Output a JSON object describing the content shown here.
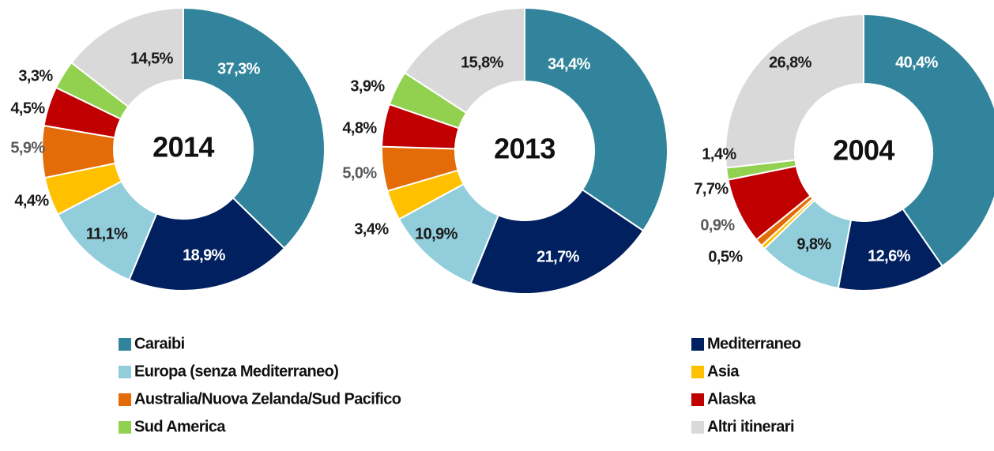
{
  "chart_data": [
    {
      "type": "pie",
      "title": "2014",
      "categories": [
        "Caraibi",
        "Mediterraneo",
        "Europa (senza Mediterraneo)",
        "Asia",
        "Australia/Nuova Zelanda/Sud Pacifico",
        "Alaska",
        "Sud America",
        "Altri itinerari"
      ],
      "values": [
        37.3,
        18.9,
        11.1,
        4.4,
        5.9,
        4.5,
        3.3,
        14.5
      ],
      "value_labels": [
        "37,3%",
        "18,9%",
        "11,1%",
        "4,4%",
        "5,9%",
        "4,5%",
        "3,3%",
        "14,5%"
      ],
      "colors": [
        "#31849b",
        "#002060",
        "#92cddc",
        "#ffc000",
        "#e36c09",
        "#c00000",
        "#92d050",
        "#d9d9d9"
      ]
    },
    {
      "type": "pie",
      "title": "2013",
      "categories": [
        "Caraibi",
        "Mediterraneo",
        "Europa (senza Mediterraneo)",
        "Asia",
        "Australia/Nuova Zelanda/Sud Pacifico",
        "Alaska",
        "Sud America",
        "Altri itinerari"
      ],
      "values": [
        34.4,
        21.7,
        10.9,
        3.4,
        5.0,
        4.8,
        3.9,
        15.8
      ],
      "value_labels": [
        "34,4%",
        "21,7%",
        "10,9%",
        "3,4%",
        "5,0%",
        "4,8%",
        "3,9%",
        "15,8%"
      ],
      "colors": [
        "#31849b",
        "#002060",
        "#92cddc",
        "#ffc000",
        "#e36c09",
        "#c00000",
        "#92d050",
        "#d9d9d9"
      ]
    },
    {
      "type": "pie",
      "title": "2004",
      "categories": [
        "Caraibi",
        "Mediterraneo",
        "Europa (senza Mediterraneo)",
        "Asia",
        "Australia/Nuova Zelanda/Sud Pacifico",
        "Alaska",
        "Sud America",
        "Altri itinerari"
      ],
      "values": [
        40.4,
        12.6,
        9.8,
        0.5,
        0.9,
        7.7,
        1.4,
        26.8
      ],
      "value_labels": [
        "40,4%",
        "12,6%",
        "9,8%",
        "0,5%",
        "0,9%",
        "7,7%",
        "1,4%",
        "26,8%"
      ],
      "colors": [
        "#31849b",
        "#002060",
        "#92cddc",
        "#ffc000",
        "#e36c09",
        "#c00000",
        "#92d050",
        "#d9d9d9"
      ]
    }
  ]
}
